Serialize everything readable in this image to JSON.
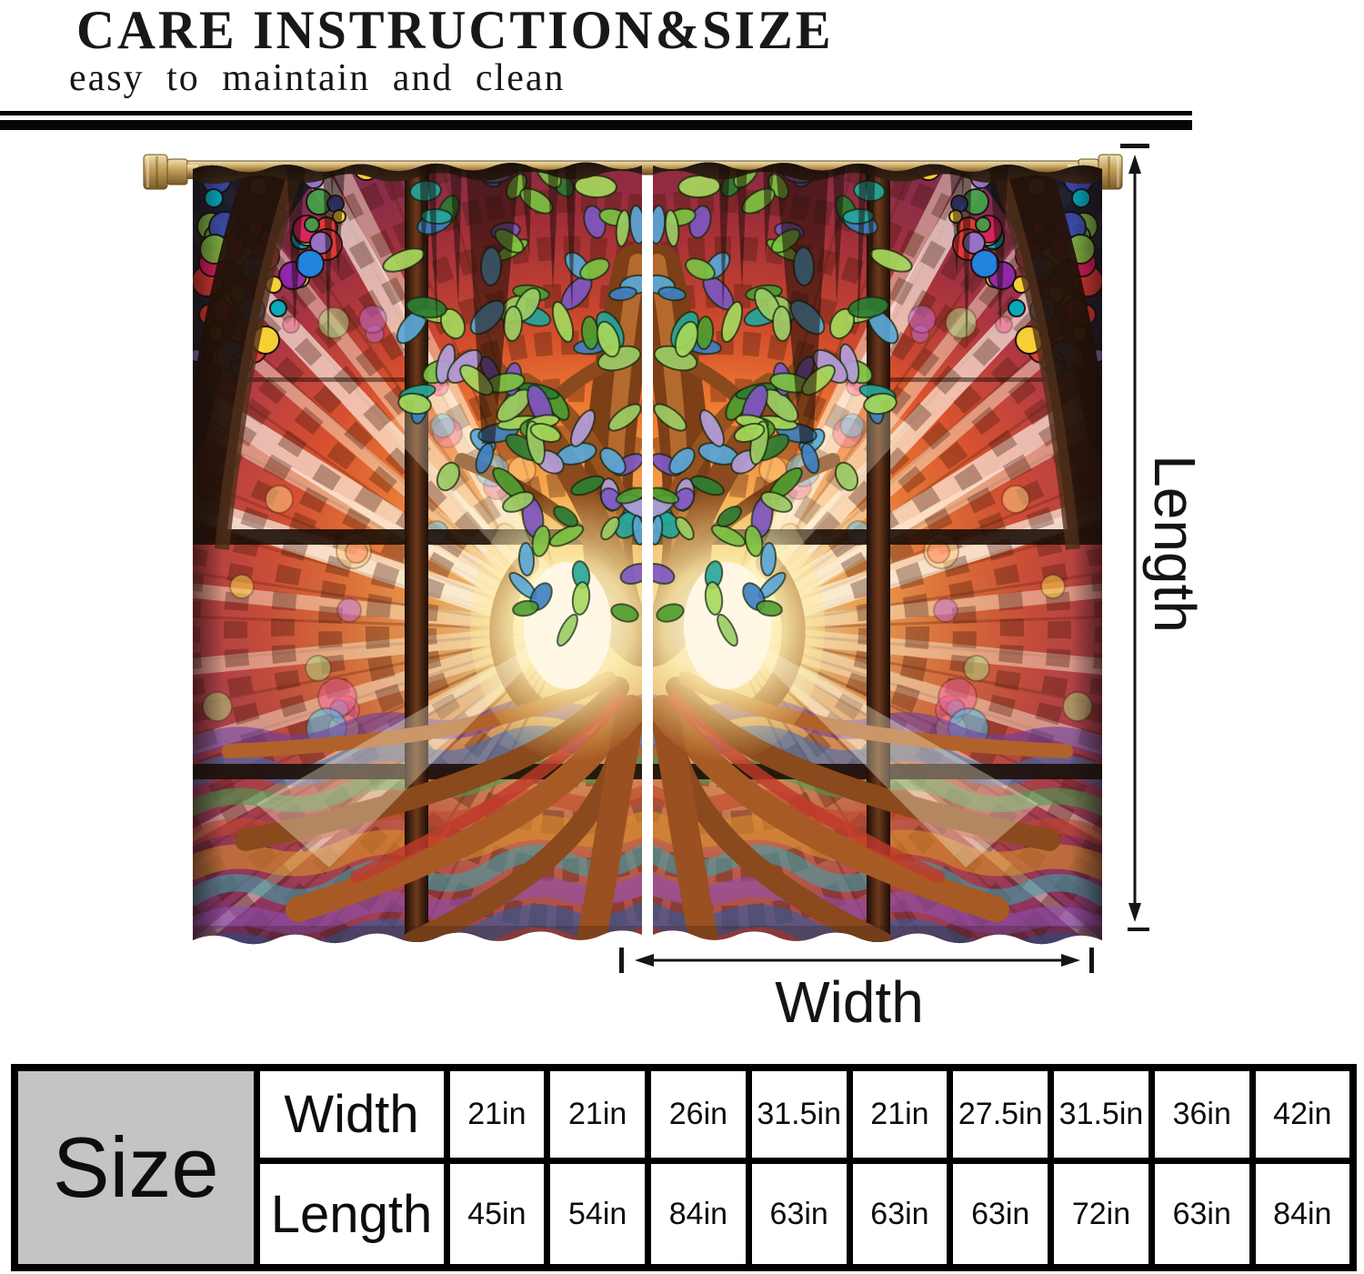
{
  "header": {
    "title": "CARE INSTRUCTION&SIZE",
    "subtitle": "easy to maintain and clean"
  },
  "annotations": {
    "length_label": "Length",
    "width_label": "Width"
  },
  "size_table": {
    "corner_label": "Size",
    "rows": [
      {
        "label": "Width",
        "values": [
          "21in",
          "21in",
          "26in",
          "31.5in",
          "21in",
          "27.5in",
          "31.5in",
          "36in",
          "42in"
        ]
      },
      {
        "label": "Length",
        "values": [
          "45in",
          "54in",
          "84in",
          "63in",
          "63in",
          "63in",
          "72in",
          "63in",
          "84in"
        ]
      }
    ]
  },
  "colors": {
    "rule": "#060606",
    "table_corner_bg": "#c4c4c4",
    "text": "#111111",
    "rod_brass": "#c9a85c"
  },
  "curtain": {
    "palette": {
      "leaves": [
        "#4f9e2f",
        "#7dc242",
        "#2e7d32",
        "#9ccc65",
        "#3f7fc1",
        "#5aa7d8",
        "#7e57c2",
        "#a6d85c",
        "#26a69a",
        "#b39ddb"
      ],
      "pebbles": [
        "#e53935",
        "#8e24aa",
        "#3949ab",
        "#1e88e5",
        "#43a047",
        "#fdd835",
        "#fb8c00",
        "#d81b60",
        "#00acc1",
        "#7cb342",
        "#9575cd"
      ],
      "bubbles": [
        "#ffd54f",
        "#ff8a65",
        "#ba68c8",
        "#4fc3f7",
        "#aed581",
        "#f06292",
        "#ffcc80"
      ],
      "waves": [
        "#6a3fa0",
        "#3f6fb5",
        "#48a04e",
        "#c2482f",
        "#d88f2a",
        "#3fa0a8",
        "#8e4fb0",
        "#2f5fa0"
      ]
    }
  }
}
